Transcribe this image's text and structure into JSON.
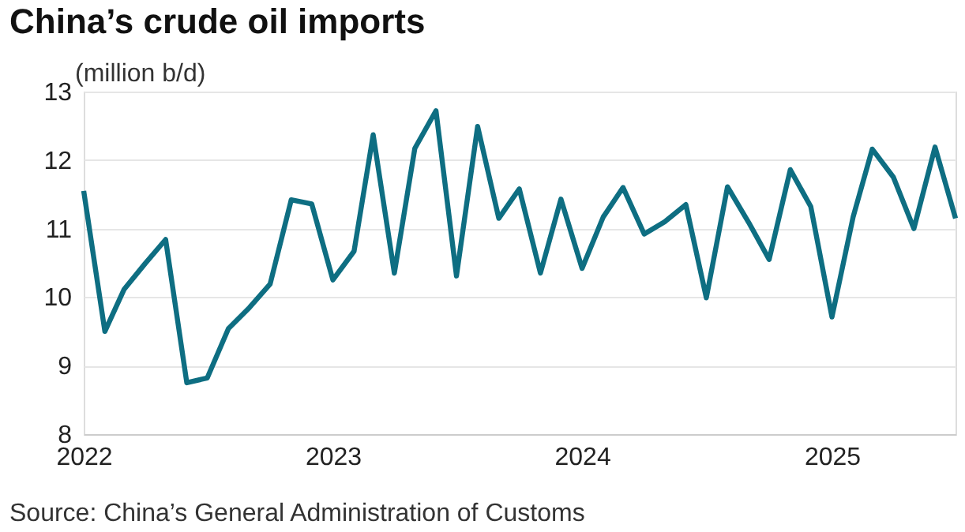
{
  "chart_data": {
    "type": "line",
    "title": "China’s crude oil imports",
    "ylabel": "(million b/d)",
    "x": [
      "2022-01",
      "2022-02",
      "2022-03",
      "2022-04",
      "2022-05",
      "2022-06",
      "2022-07",
      "2022-08",
      "2022-09",
      "2022-10",
      "2022-11",
      "2022-12",
      "2023-01",
      "2023-02",
      "2023-03",
      "2023-04",
      "2023-05",
      "2023-06",
      "2023-07",
      "2023-08",
      "2023-09",
      "2023-10",
      "2023-11",
      "2023-12",
      "2024-01",
      "2024-02",
      "2024-03",
      "2024-04",
      "2024-05",
      "2024-06",
      "2024-07",
      "2024-08",
      "2024-09",
      "2024-10",
      "2024-11",
      "2024-12",
      "2025-01",
      "2025-02",
      "2025-03",
      "2025-04",
      "2025-05",
      "2025-06",
      "2025-07"
    ],
    "series": [
      {
        "color": "#0e6e82",
        "values": [
          11.55,
          9.5,
          10.11,
          10.49,
          10.84,
          8.75,
          8.82,
          9.54,
          9.85,
          10.19,
          11.42,
          11.36,
          10.25,
          10.67,
          12.37,
          10.35,
          12.17,
          12.72,
          10.31,
          12.49,
          11.15,
          11.58,
          10.35,
          11.43,
          10.42,
          11.17,
          11.6,
          10.92,
          11.1,
          11.35,
          9.99,
          11.61,
          11.09,
          10.55,
          11.86,
          11.32,
          9.71,
          11.17,
          12.16,
          11.75,
          11.0,
          12.19,
          11.15
        ]
      }
    ],
    "xlim": [
      "2022-01",
      "2025-07"
    ],
    "xticks": [
      {
        "value": "2022-01",
        "label": "2022"
      },
      {
        "value": "2023-01",
        "label": "2023"
      },
      {
        "value": "2024-01",
        "label": "2024"
      },
      {
        "value": "2025-01",
        "label": "2025"
      }
    ],
    "ylim": [
      8,
      13
    ],
    "yticks": [
      8,
      9,
      10,
      11,
      12,
      13
    ],
    "grid": "y",
    "marker": "none",
    "line_style": "solid",
    "annotations": [
      "Source: China’s General Administration of Customs"
    ]
  }
}
